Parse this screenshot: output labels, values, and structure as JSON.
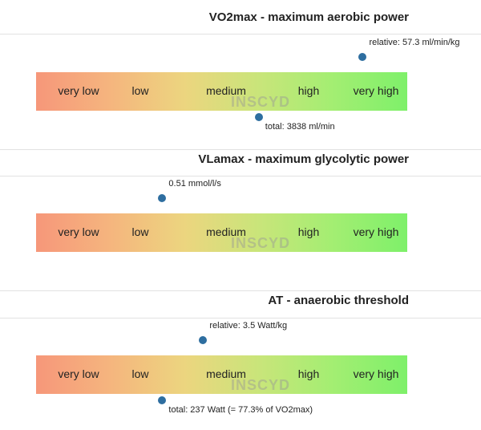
{
  "colors": {
    "dot": "#2e6ea0",
    "low_end": "#f6977a",
    "mid": "#ecd57f",
    "high_end": "#7ef06a"
  },
  "watermark": "INSCYD",
  "chart_data": [
    {
      "type": "bar",
      "title": "VO2max - maximum aerobic power",
      "categories": [
        "very low",
        "low",
        "medium",
        "high",
        "very high"
      ],
      "markers": [
        {
          "label": "relative: 57.3 ml/min/kg",
          "position": 0.88,
          "side": "above"
        },
        {
          "label": "total: 3838 ml/min",
          "position": 0.6,
          "side": "below"
        }
      ]
    },
    {
      "type": "bar",
      "title": "VLamax - maximum glycolytic power",
      "categories": [
        "very low",
        "low",
        "medium",
        "high",
        "very high"
      ],
      "markers": [
        {
          "label": "0.51 mmol/l/s",
          "position": 0.34,
          "side": "above"
        }
      ]
    },
    {
      "type": "bar",
      "title": "AT - anaerobic threshold",
      "categories": [
        "very low",
        "low",
        "medium",
        "high",
        "very high"
      ],
      "markers": [
        {
          "label": "relative: 3.5 Watt/kg",
          "position": 0.45,
          "side": "above"
        },
        {
          "label": "total: 237 Watt (= 77.3% of VO2max)",
          "position": 0.34,
          "side": "below"
        }
      ]
    }
  ]
}
